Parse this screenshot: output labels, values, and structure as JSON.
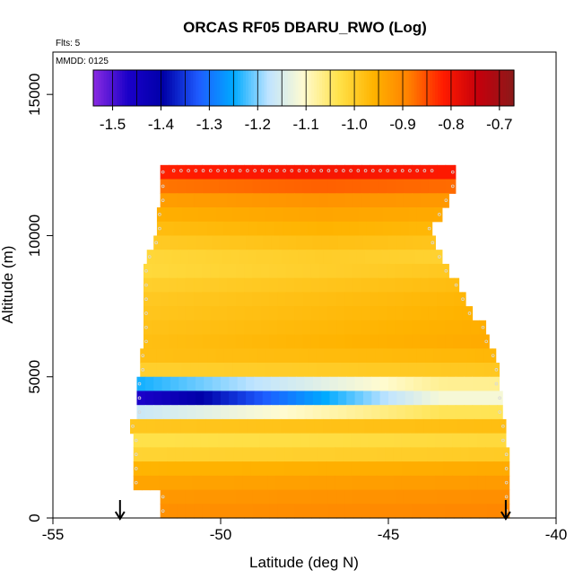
{
  "chart_data": {
    "type": "heatmap",
    "title": "ORCAS RF05 DBARU_RWO (Log)",
    "subtitle_flts": "Flts: 5",
    "subtitle_mmdd": "MMDD: 0125",
    "xlabel": "Latitude (deg N)",
    "ylabel": "Altitude (m)",
    "xlim": [
      -55,
      -40
    ],
    "ylim": [
      0,
      16500
    ],
    "x_ticks": [
      -55,
      -50,
      -45,
      -40
    ],
    "y_ticks": [
      0,
      5000,
      10000,
      15000
    ],
    "colorbar": {
      "range": [
        -1.54,
        -0.67
      ],
      "ticks": [
        -1.5,
        -1.4,
        -1.3,
        -1.2,
        -1.1,
        -1.0,
        -0.9,
        -0.8,
        -0.7
      ],
      "tick_labels": [
        "-1.5",
        "-1.4",
        "-1.3",
        "-1.2",
        "-1.1",
        "-1.0",
        "-0.9",
        "-0.8",
        "-0.7"
      ],
      "colors": [
        "#8a2be2",
        "#1a00c8",
        "#0000a8",
        "#1e5bff",
        "#00aaff",
        "#bfe4ff",
        "#fffbd0",
        "#ffe24a",
        "#ffb300",
        "#ff8000",
        "#ff1a00",
        "#c4000c",
        "#8b1a1a"
      ]
    },
    "arrows_latitude": [
      -53.0,
      -41.5
    ],
    "profile_points_color": "#d9d9d9",
    "grid": false
  }
}
